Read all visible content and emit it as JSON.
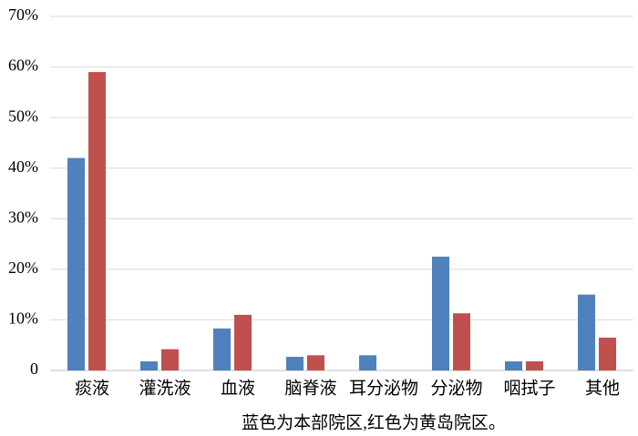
{
  "chart_data": {
    "type": "bar",
    "categories": [
      "痰液",
      "灌洗液",
      "血液",
      "脑脊液",
      "耳分泌物",
      "分泌物",
      "咽拭子",
      "其他"
    ],
    "series": [
      {
        "color": "#4f81bd",
        "values": [
          42,
          1.8,
          8.3,
          2.7,
          3.0,
          22.5,
          1.8,
          15.0
        ]
      },
      {
        "color": "#c0504d",
        "values": [
          59,
          4.2,
          11.0,
          3.0,
          0,
          11.3,
          1.8,
          6.5
        ]
      }
    ],
    "xlabel": "蓝色为本部院区,红色为黄岛院区。",
    "ylim": [
      0,
      70
    ],
    "yticks": [
      0,
      {
        "value": 10,
        "label": "10%"
      },
      {
        "value": 20,
        "label": "20%"
      },
      {
        "value": 30,
        "label": "30%"
      },
      {
        "value": 40,
        "label": "40%"
      },
      {
        "value": 50,
        "label": "50%"
      },
      {
        "value": 60,
        "label": "60%"
      },
      {
        "value": 70,
        "label": "70%"
      }
    ],
    "grid": true
  }
}
